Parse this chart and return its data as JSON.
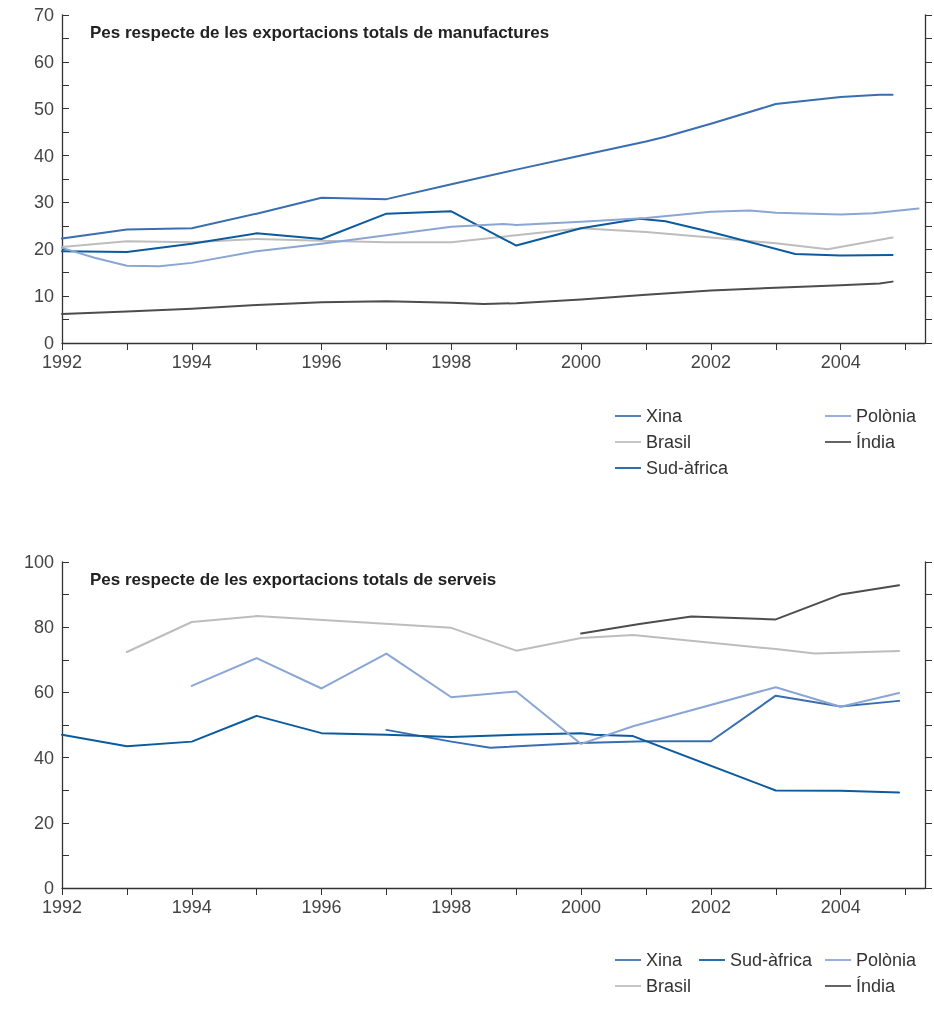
{
  "chart_data": [
    {
      "type": "line",
      "title": "Pes respecte de les exportacions totals de manufactures",
      "xlim": [
        1992,
        2005.3
      ],
      "ylim": [
        0,
        70
      ],
      "xticks": [
        1992,
        {
          "value": 1993,
          "label": null
        },
        1994,
        {
          "value": 1995,
          "label": null
        },
        1996,
        {
          "value": 1997,
          "label": null
        },
        1998,
        {
          "value": 1999,
          "label": null
        },
        2000,
        {
          "value": 2001,
          "label": null
        },
        2002,
        {
          "value": 2003,
          "label": null
        },
        2004,
        {
          "value": 2005,
          "label": null
        }
      ],
      "yticks": [
        0,
        {
          "value": 5,
          "label": null
        },
        10,
        {
          "value": 15,
          "label": null
        },
        20,
        {
          "value": 25,
          "label": null
        },
        30,
        {
          "value": 35,
          "label": null
        },
        40,
        {
          "value": 45,
          "label": null
        },
        50,
        {
          "value": 55,
          "label": null
        },
        60,
        {
          "value": 65,
          "label": null
        },
        70
      ],
      "grid": false,
      "legend": "bottom right",
      "marker": "none",
      "line_style": "solid",
      "series": [
        {
          "name": "Xina",
          "color": "#3a6eb0",
          "x": [
            1992,
            1993,
            1994,
            1995,
            1996,
            1997,
            1998,
            1999,
            2000,
            2001,
            2001.3,
            2002,
            2003,
            2004,
            2004.6,
            2004.8
          ],
          "values": [
            22.3,
            24.2,
            24.5,
            27.6,
            31,
            30.7,
            33.9,
            37,
            40,
            43,
            44,
            46.8,
            51,
            52.5,
            53,
            53
          ]
        },
        {
          "name": "Brasil",
          "color": "#bdbdbd",
          "x": [
            1992,
            1993,
            1994,
            1995,
            1996,
            1997,
            1998,
            1999,
            2000,
            2001,
            2002,
            2003,
            2003.8,
            2004.8
          ],
          "values": [
            20.5,
            21.7,
            21.5,
            22.2,
            21.8,
            21.5,
            21.5,
            23,
            24.5,
            23.7,
            22.5,
            21.3,
            20,
            22.5
          ]
        },
        {
          "name": "Sud-àfrica",
          "color": "#0b5b9e",
          "x": [
            1992,
            1993,
            1994,
            1995,
            1996,
            1997,
            1998,
            1999,
            2000,
            2000.9,
            2001.3,
            2002,
            2003.3,
            2004,
            2004.8
          ],
          "values": [
            19.6,
            19.4,
            21.2,
            23.4,
            22.2,
            27.6,
            28.1,
            20.8,
            24.5,
            26.5,
            26,
            23.7,
            19,
            18.7,
            18.8
          ]
        },
        {
          "name": "Polònia",
          "color": "#8aa6d4",
          "x": [
            1992,
            1992.5,
            1993,
            1993.5,
            1994,
            1995,
            1996,
            1997,
            1998,
            1998.8,
            1999,
            2000,
            2001,
            2002,
            2002.6,
            2003,
            2004,
            2004.5,
            2005.2
          ],
          "values": [
            20.3,
            18.2,
            16.5,
            16.4,
            17.1,
            19.6,
            21.2,
            23,
            24.8,
            25.4,
            25.2,
            25.9,
            26.7,
            28,
            28.3,
            27.8,
            27.4,
            27.7,
            28.7
          ]
        },
        {
          "name": "Índia",
          "color": "#4d4d4d",
          "x": [
            1992,
            1993,
            1994,
            1995,
            1996,
            1997,
            1998,
            1998.5,
            1999,
            2000,
            2001,
            2002,
            2003,
            2004,
            2004.6,
            2004.8
          ],
          "values": [
            6.2,
            6.7,
            7.3,
            8.1,
            8.7,
            8.9,
            8.6,
            8.3,
            8.5,
            9.3,
            10.3,
            11.2,
            11.8,
            12.3,
            12.7,
            13.1
          ]
        }
      ]
    },
    {
      "type": "line",
      "title": "Pes respecte de les exportacions totals de serveis",
      "xlim": [
        1992,
        2005.3
      ],
      "ylim": [
        0,
        100
      ],
      "xticks": [
        1992,
        {
          "value": 1993,
          "label": null
        },
        1994,
        {
          "value": 1995,
          "label": null
        },
        1996,
        {
          "value": 1997,
          "label": null
        },
        1998,
        {
          "value": 1999,
          "label": null
        },
        2000,
        {
          "value": 2001,
          "label": null
        },
        2002,
        {
          "value": 2003,
          "label": null
        },
        2004,
        {
          "value": 2005,
          "label": null
        }
      ],
      "yticks": [
        0,
        {
          "value": 10,
          "label": null
        },
        20,
        {
          "value": 30,
          "label": null
        },
        40,
        {
          "value": 50,
          "label": null
        },
        60,
        {
          "value": 70,
          "label": null
        },
        80,
        {
          "value": 90,
          "label": null
        },
        100
      ],
      "grid": false,
      "legend": "bottom right",
      "marker": "none",
      "line_style": "solid",
      "series": [
        {
          "name": "Xina",
          "color": "#3a6eb0",
          "x": [
            1997,
            1998,
            1998.6,
            2000,
            2001,
            2002,
            2003,
            2004,
            2004.9
          ],
          "values": [
            48.5,
            44.9,
            43,
            44.5,
            45,
            45,
            59,
            55.7,
            57.4
          ]
        },
        {
          "name": "Brasil",
          "color": "#bdbdbd",
          "x": [
            1993,
            1994,
            1995,
            1998,
            1999,
            2000,
            2000.8,
            2003,
            2003.6,
            2004,
            2004.9
          ],
          "values": [
            72.4,
            81.6,
            83.4,
            79.8,
            72.8,
            76.7,
            77.6,
            73.3,
            71.9,
            72.2,
            72.7
          ]
        },
        {
          "name": "Sud-àfrica",
          "color": "#0b5b9e",
          "x": [
            1992,
            1993,
            1994,
            1995,
            1996,
            1997,
            1998,
            1999,
            2000,
            2000.2,
            2000.8,
            2003,
            2004,
            2004.9
          ],
          "values": [
            47,
            43.5,
            44.9,
            52.8,
            47.5,
            47,
            46.3,
            47,
            47.5,
            47,
            46.6,
            29.9,
            29.8,
            29.3
          ]
        },
        {
          "name": "Polònia",
          "color": "#8aa6d4",
          "x": [
            1994,
            1995,
            1996,
            1997,
            1998,
            1999,
            2000,
            2000.8,
            2003,
            2004,
            2004.9
          ],
          "values": [
            62,
            70.5,
            61.2,
            71.9,
            58.5,
            60.3,
            44.2,
            49.6,
            61.6,
            55.6,
            59.8
          ]
        },
        {
          "name": "Índia",
          "color": "#4d4d4d",
          "x": [
            2000,
            2000.9,
            2001.7,
            2003,
            2004,
            2004.9
          ],
          "values": [
            78.1,
            81,
            83.3,
            82.4,
            90,
            92.9
          ]
        }
      ]
    }
  ]
}
